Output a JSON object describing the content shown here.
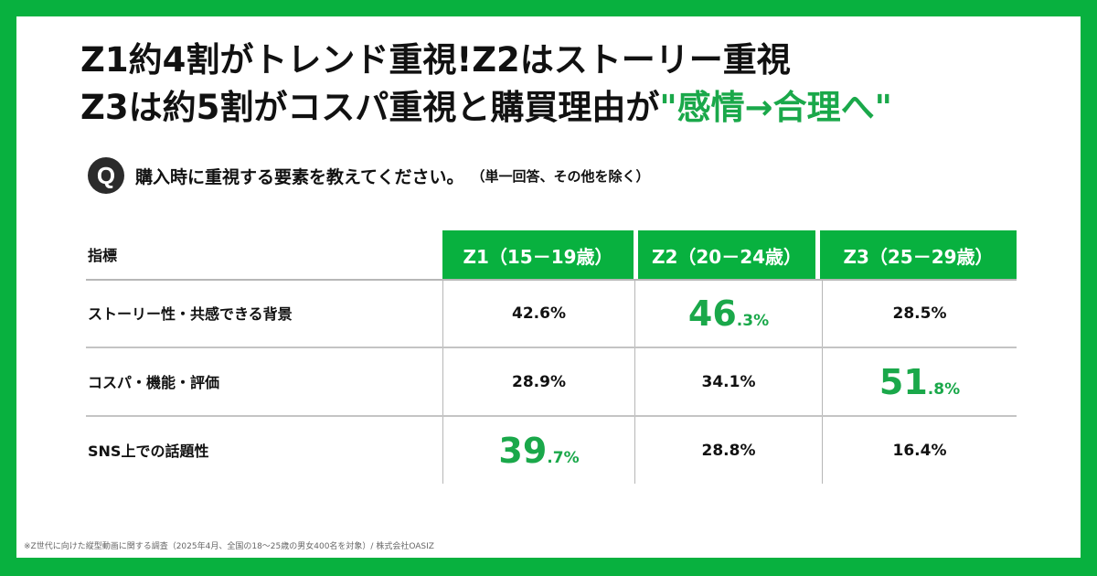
{
  "title": {
    "line1": "Z1約4割がトレンド重視!Z2はストーリー重視",
    "line2_prefix": "Z3は約5割がコスパ重視と購買理由が",
    "line2_accent": "\"感情→合理へ\""
  },
  "question": {
    "icon": "Q",
    "text": "購入時に重視する要素を教えてください。",
    "note": "（単一回答、その他を除く）"
  },
  "table": {
    "header_label": "指標",
    "columns": [
      "Z1（15－19歳）",
      "Z2（20－24歳）",
      "Z3（25－29歳）"
    ],
    "rows": [
      {
        "label": "ストーリー性・共感できる背景",
        "cells": [
          {
            "value": "42.6%",
            "highlight": false
          },
          {
            "value": "46.3%",
            "highlight": true,
            "big": "46",
            "small": ".3%"
          },
          {
            "value": "28.5%",
            "highlight": false
          }
        ]
      },
      {
        "label": "コスパ・機能・評価",
        "cells": [
          {
            "value": "28.9%",
            "highlight": false
          },
          {
            "value": "34.1%",
            "highlight": false
          },
          {
            "value": "51.8%",
            "highlight": true,
            "big": "51",
            "small": ".8%"
          }
        ]
      },
      {
        "label": "SNS上での話題性",
        "cells": [
          {
            "value": "39.7%",
            "highlight": true,
            "big": "39",
            "small": ".7%"
          },
          {
            "value": "28.8%",
            "highlight": false
          },
          {
            "value": "16.4%",
            "highlight": false
          }
        ]
      }
    ]
  },
  "footnote": "※Z世代に向けた縦型動画に関する調査（2025年4月、全国の18～25歳の男女400名を対象）/ 株式会社OASIZ",
  "colors": {
    "brand_green": "#08b13f",
    "accent_text_green": "#1aa84a"
  }
}
